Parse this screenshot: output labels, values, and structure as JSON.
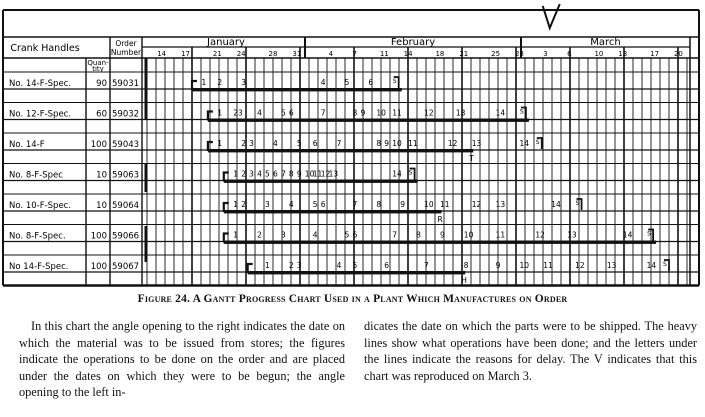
{
  "chart_data": {
    "type": "gantt",
    "title": "",
    "product_header": "Crank Handles",
    "order_header": "Order Number",
    "quantity_header": "Quan-tity",
    "months": [
      "January",
      "February",
      "March"
    ],
    "date_ticks": [
      "Jan 14",
      "Jan 17",
      "Jan 21",
      "Jan 24",
      "Jan 28",
      "Jan 31",
      "Feb 4",
      "Feb 7",
      "Feb 11",
      "Feb 14",
      "Feb 18",
      "Feb 21",
      "Feb 25",
      "Feb 28",
      "Mar 3",
      "Mar 6",
      "Mar 10",
      "Mar 13",
      "Mar 17",
      "Mar 20"
    ],
    "date_tick_labels": [
      "14",
      "17",
      "21",
      "24",
      "28",
      "31",
      "4",
      "7",
      "11",
      "14",
      "18",
      "21",
      "25",
      "28",
      "3",
      "6",
      "10",
      "13",
      "17",
      "20"
    ],
    "current_date_marker": {
      "label": "V",
      "date": "Mar 3"
    },
    "orders": [
      {
        "product": "No. 14-F-Spec.",
        "quantity": "90",
        "order": "59031",
        "start": "Jan 17",
        "ship": "Feb 12",
        "done": "Feb 12",
        "delay": "",
        "ops": [
          [
            "1",
            "Jan 18"
          ],
          [
            "2",
            "Jan 20"
          ],
          [
            "3",
            "Jan 23"
          ],
          [
            "4",
            "Feb 2"
          ],
          [
            "5",
            "Feb 5"
          ],
          [
            "6",
            "Feb 8"
          ]
        ]
      },
      {
        "product": "No. 12-F-Spec.",
        "quantity": "60",
        "order": "59032",
        "start": "Jan 19",
        "ship": "Feb 28",
        "done": "Feb 28",
        "delay": "",
        "ops": [
          [
            "1",
            "Jan 20"
          ],
          [
            "23",
            "Jan 22"
          ],
          [
            "4",
            "Jan 25"
          ],
          [
            "5",
            "Jan 28"
          ],
          [
            "6",
            "Jan 29"
          ],
          [
            "7",
            "Feb 2"
          ],
          [
            "8",
            "Feb 6"
          ],
          [
            "9",
            "Feb 7"
          ],
          [
            "10",
            "Feb 9"
          ],
          [
            "11",
            "Feb 11"
          ],
          [
            "12",
            "Feb 15"
          ],
          [
            "13",
            "Feb 19"
          ],
          [
            "14",
            "Feb 24"
          ]
        ]
      },
      {
        "product": "No. 14-F",
        "quantity": "100",
        "order": "59043",
        "start": "Jan 19",
        "ship": "Mar 2",
        "done": "Feb 21",
        "delay": "T",
        "ops": [
          [
            "1",
            "Jan 20"
          ],
          [
            "2",
            "Jan 23"
          ],
          [
            "3",
            "Jan 24"
          ],
          [
            "4",
            "Jan 27"
          ],
          [
            "5",
            "Jan 30"
          ],
          [
            "6",
            "Feb 1"
          ],
          [
            "7",
            "Feb 4"
          ],
          [
            "8",
            "Feb 9"
          ],
          [
            "9",
            "Feb 10"
          ],
          [
            "10",
            "Feb 11"
          ],
          [
            "11",
            "Feb 13"
          ],
          [
            "12",
            "Feb 18"
          ],
          [
            "13",
            "Feb 21"
          ],
          [
            "14",
            "Feb 27"
          ]
        ]
      },
      {
        "product": "No. 8-F-Spec",
        "quantity": "10",
        "order": "59063",
        "start": "Jan 21",
        "ship": "Feb 14",
        "done": "Feb 14",
        "delay": "",
        "ops": [
          [
            "1",
            "Jan 22"
          ],
          [
            "2",
            "Jan 23"
          ],
          [
            "3",
            "Jan 24"
          ],
          [
            "4",
            "Jan 25"
          ],
          [
            "5",
            "Jan 26"
          ],
          [
            "6",
            "Jan 27"
          ],
          [
            "7",
            "Jan 28"
          ],
          [
            "8",
            "Jan 29"
          ],
          [
            "9",
            "Jan 30"
          ],
          [
            "10",
            "Jan 31"
          ],
          [
            "11",
            "Feb 1"
          ],
          [
            "12",
            "Feb 2"
          ],
          [
            "13",
            "Feb 3"
          ],
          [
            "14",
            "Feb 11"
          ]
        ]
      },
      {
        "product": "No. 10-F-Spec.",
        "quantity": "10",
        "order": "59064",
        "start": "Jan 21",
        "ship": "Mar 7",
        "done": "Feb 17",
        "delay": "R",
        "ops": [
          [
            "1",
            "Jan 22"
          ],
          [
            "2",
            "Jan 23"
          ],
          [
            "3",
            "Jan 26"
          ],
          [
            "4",
            "Jan 29"
          ],
          [
            "5",
            "Feb 1"
          ],
          [
            "6",
            "Feb 2"
          ],
          [
            "7",
            "Feb 6"
          ],
          [
            "8",
            "Feb 9"
          ],
          [
            "9",
            "Feb 12"
          ],
          [
            "10",
            "Feb 15"
          ],
          [
            "11",
            "Feb 17"
          ],
          [
            "12",
            "Feb 21"
          ],
          [
            "13",
            "Feb 24"
          ],
          [
            "14",
            "Mar 3"
          ]
        ]
      },
      {
        "product": "No. 8-F-Spec.",
        "quantity": "100",
        "order": "59066",
        "start": "Jan 21",
        "ship": "Mar 16",
        "done": "Mar 16",
        "delay": "",
        "ops": [
          [
            "1",
            "Jan 22"
          ],
          [
            "2",
            "Jan 25"
          ],
          [
            "3",
            "Jan 28"
          ],
          [
            "4",
            "Feb 1"
          ],
          [
            "5",
            "Feb 5"
          ],
          [
            "6",
            "Feb 6"
          ],
          [
            "7",
            "Feb 11"
          ],
          [
            "8",
            "Feb 14"
          ],
          [
            "9",
            "Feb 17"
          ],
          [
            "10",
            "Feb 20"
          ],
          [
            "11",
            "Feb 24"
          ],
          [
            "12",
            "Mar 1"
          ],
          [
            "13",
            "Mar 5"
          ],
          [
            "14",
            "Mar 12"
          ]
        ]
      },
      {
        "product": "No 14-F-Spec.",
        "quantity": "100",
        "order": "59067",
        "start": "Jan 24",
        "ship": "Mar 18",
        "done": "Feb 20",
        "delay": "H",
        "ops": [
          [
            "1",
            "Jan 26"
          ],
          [
            "2",
            "Jan 29"
          ],
          [
            "3",
            "Jan 30"
          ],
          [
            "4",
            "Feb 4"
          ],
          [
            "5",
            "Feb 6"
          ],
          [
            "6",
            "Feb 10"
          ],
          [
            "7",
            "Feb 15"
          ],
          [
            "8",
            "Feb 20"
          ],
          [
            "9",
            "Feb 24"
          ],
          [
            "10",
            "Feb 27"
          ],
          [
            "11",
            "Mar 2"
          ],
          [
            "12",
            "Mar 6"
          ],
          [
            "13",
            "Mar 10"
          ],
          [
            "14",
            "Mar 15"
          ]
        ]
      }
    ]
  },
  "caption": "Figure 24. A Gantt Progress Chart Used in a Plant Which Manufactures on Order",
  "body_left": "In this chart the angle opening to the right indicates the date on which the material was to be issued from stores; the figures indicate the operations to be done on the order and are placed under the dates on which they were to be begun; the angle opening to the left in-",
  "body_right": "dicates the date on which the parts were to be shipped. The heavy lines show what operations have been done; and the letters under the lines indicate the reasons for delay. The V indicates that this chart was reproduced on March 3."
}
